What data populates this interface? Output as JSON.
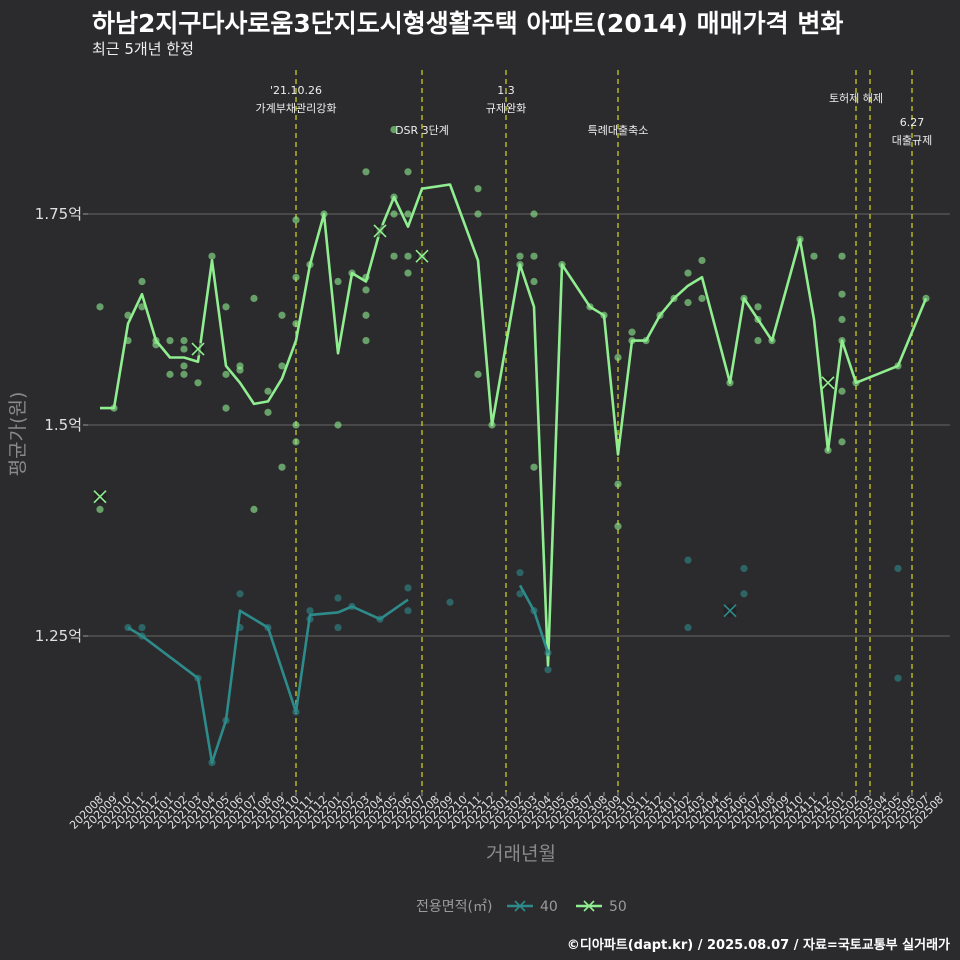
{
  "page": {
    "title": "하남2지구다사로움3단지도시형생활주택 아파트(2014) 매매가격 변화",
    "subtitle": "최근 5개년 한정",
    "credit": "©디아파트(dapt.kr) / 2025.08.07 / 자료=국토교통부 실거래가"
  },
  "chart_data": {
    "type": "line",
    "title": "하남2지구다사로움3단지도시형생활주택 아파트(2014) 매매가격 변화",
    "subtitle": "최근 5개년 한정",
    "xlabel": "거래년월",
    "ylabel": "평균가(원)",
    "ylim": [
      1.05,
      1.95
    ],
    "yticks": [
      1.25,
      1.5,
      1.75
    ],
    "ytick_labels": [
      "1.25억",
      "1.5억",
      "1.75억"
    ],
    "grid": true,
    "categories": [
      "202008",
      "202009",
      "202010",
      "202011",
      "202012",
      "202101",
      "202102",
      "202103",
      "202104",
      "202105",
      "202106",
      "202107",
      "202108",
      "202109",
      "202110",
      "202111",
      "202112",
      "202201",
      "202202",
      "202203",
      "202204",
      "202205",
      "202206",
      "202207",
      "202208",
      "202209",
      "202210",
      "202211",
      "202212",
      "202301",
      "202302",
      "202303",
      "202304",
      "202305",
      "202306",
      "202307",
      "202308",
      "202309",
      "202310",
      "202311",
      "202312",
      "202401",
      "202402",
      "202403",
      "202404",
      "202405",
      "202406",
      "202407",
      "202408",
      "202409",
      "202410",
      "202411",
      "202412",
      "202501",
      "202502",
      "202503",
      "202504",
      "202505",
      "202506",
      "202507",
      "202508"
    ],
    "annotations": [
      {
        "x": 14.0,
        "label": "'21.10.26\n가계부채관리강화"
      },
      {
        "x": 23.0,
        "label": "DSR 3단계"
      },
      {
        "x": 29.0,
        "label": "1.3\n규제완화"
      },
      {
        "x": 37.0,
        "label": "특례대출축소"
      },
      {
        "x": 54.0,
        "label": "토허제 해제"
      },
      {
        "x": 55.0,
        "label": ""
      },
      {
        "x": 58.0,
        "label": "6.27\n대출규제"
      }
    ],
    "legend": {
      "title": "전용면적(㎡)",
      "position": "bottom",
      "entries": [
        "40",
        "50"
      ]
    },
    "series": [
      {
        "name": "50",
        "color": "#90ee90",
        "line": [
          [
            0,
            1.52
          ],
          [
            1,
            1.52
          ],
          [
            2,
            1.62
          ],
          [
            3,
            1.655
          ],
          [
            4,
            1.6
          ],
          [
            5,
            1.58
          ],
          [
            6,
            1.58
          ],
          [
            7,
            1.575
          ],
          [
            8,
            1.695
          ],
          [
            9,
            1.57
          ],
          [
            10,
            1.55
          ],
          [
            11,
            1.525
          ],
          [
            12,
            1.528
          ],
          [
            13,
            1.555
          ],
          [
            14,
            1.6
          ],
          [
            15,
            1.69
          ],
          [
            16,
            1.75
          ],
          [
            17,
            1.585
          ],
          [
            18,
            1.68
          ],
          [
            19,
            1.67
          ],
          [
            20,
            1.73
          ],
          [
            21,
            1.77
          ],
          [
            22,
            1.735
          ],
          [
            23,
            1.78
          ],
          [
            25,
            1.785
          ],
          [
            27,
            1.695
          ],
          [
            28,
            1.5
          ],
          [
            30,
            1.69
          ],
          [
            31,
            1.64
          ],
          [
            32,
            1.215
          ],
          [
            33,
            1.69
          ],
          [
            35,
            1.64
          ],
          [
            36,
            1.63
          ],
          [
            37,
            1.465
          ],
          [
            38,
            1.6
          ],
          [
            39,
            1.6
          ],
          [
            40,
            1.63
          ],
          [
            41,
            1.65
          ],
          [
            42,
            1.665
          ],
          [
            43,
            1.675
          ],
          [
            45,
            1.55
          ],
          [
            46,
            1.65
          ],
          [
            47,
            1.625
          ],
          [
            48,
            1.6
          ],
          [
            50,
            1.72
          ],
          [
            51,
            1.625
          ],
          [
            52,
            1.47
          ],
          [
            53,
            1.6
          ],
          [
            54,
            1.55
          ],
          [
            57,
            1.57
          ],
          [
            59,
            1.65
          ]
        ],
        "points": [
          [
            0,
            1.64
          ],
          [
            0,
            1.4
          ],
          [
            1,
            1.52
          ],
          [
            2,
            1.63
          ],
          [
            2,
            1.6
          ],
          [
            3,
            1.67
          ],
          [
            3,
            1.64
          ],
          [
            4,
            1.6
          ],
          [
            4,
            1.595
          ],
          [
            5,
            1.6
          ],
          [
            5,
            1.56
          ],
          [
            6,
            1.6
          ],
          [
            6,
            1.59
          ],
          [
            6,
            1.57
          ],
          [
            6,
            1.56
          ],
          [
            7,
            1.55
          ],
          [
            8,
            1.7
          ],
          [
            9,
            1.64
          ],
          [
            9,
            1.56
          ],
          [
            9,
            1.52
          ],
          [
            10,
            1.57
          ],
          [
            10,
            1.565
          ],
          [
            11,
            1.65
          ],
          [
            11,
            1.4
          ],
          [
            12,
            1.54
          ],
          [
            12,
            1.515
          ],
          [
            13,
            1.63
          ],
          [
            13,
            1.57
          ],
          [
            13,
            1.45
          ],
          [
            14,
            1.743
          ],
          [
            14,
            1.675
          ],
          [
            14,
            1.62
          ],
          [
            14,
            1.5
          ],
          [
            14,
            1.48
          ],
          [
            15,
            1.69
          ],
          [
            16,
            1.75
          ],
          [
            17,
            1.67
          ],
          [
            17,
            1.5
          ],
          [
            18,
            1.68
          ],
          [
            19,
            1.8
          ],
          [
            19,
            1.675
          ],
          [
            19,
            1.66
          ],
          [
            19,
            1.63
          ],
          [
            19,
            1.6
          ],
          [
            20,
            1.73
          ],
          [
            21,
            1.85
          ],
          [
            21,
            1.77
          ],
          [
            21,
            1.75
          ],
          [
            21,
            1.7
          ],
          [
            22,
            1.8
          ],
          [
            22,
            1.75
          ],
          [
            22,
            1.7
          ],
          [
            22,
            1.68
          ],
          [
            23,
            1.7
          ],
          [
            27,
            1.78
          ],
          [
            27,
            1.75
          ],
          [
            27,
            1.56
          ],
          [
            28,
            1.5
          ],
          [
            30,
            1.7
          ],
          [
            30,
            1.69
          ],
          [
            31,
            1.75
          ],
          [
            31,
            1.7
          ],
          [
            31,
            1.67
          ],
          [
            31,
            1.45
          ],
          [
            33,
            1.69
          ],
          [
            35,
            1.64
          ],
          [
            36,
            1.63
          ],
          [
            37,
            1.43
          ],
          [
            37,
            1.38
          ],
          [
            37,
            1.58
          ],
          [
            38,
            1.61
          ],
          [
            38,
            1.6
          ],
          [
            39,
            1.6
          ],
          [
            40,
            1.63
          ],
          [
            41,
            1.65
          ],
          [
            42,
            1.68
          ],
          [
            42,
            1.645
          ],
          [
            43,
            1.695
          ],
          [
            43,
            1.65
          ],
          [
            45,
            1.55
          ],
          [
            46,
            1.65
          ],
          [
            47,
            1.64
          ],
          [
            47,
            1.625
          ],
          [
            47,
            1.6
          ],
          [
            48,
            1.6
          ],
          [
            50,
            1.72
          ],
          [
            51,
            1.7
          ],
          [
            52,
            1.47
          ],
          [
            53,
            1.7
          ],
          [
            53,
            1.655
          ],
          [
            53,
            1.625
          ],
          [
            53,
            1.6
          ],
          [
            53,
            1.54
          ],
          [
            53,
            1.48
          ],
          [
            54,
            1.55
          ],
          [
            57,
            1.57
          ],
          [
            59,
            1.65
          ]
        ],
        "markers": [
          [
            0,
            1.415
          ],
          [
            7,
            1.59
          ],
          [
            20,
            1.73
          ],
          [
            23,
            1.7
          ],
          [
            52,
            1.55
          ]
        ]
      },
      {
        "name": "40",
        "color": "#2e8b8b",
        "line": [
          [
            2,
            1.26
          ],
          [
            3,
            1.25
          ],
          [
            7,
            1.2
          ],
          [
            8,
            1.1
          ],
          [
            9,
            1.15
          ],
          [
            10,
            1.28
          ],
          [
            12,
            1.26
          ],
          [
            14,
            1.16
          ],
          [
            15,
            1.275
          ],
          [
            17,
            1.278
          ],
          [
            18,
            1.285
          ],
          [
            20,
            1.27
          ],
          [
            22,
            1.293
          ],
          [
            30,
            1.31
          ],
          [
            31,
            1.28
          ],
          [
            32,
            1.23
          ]
        ],
        "segment_breaks": [
          [
            22,
            30
          ]
        ],
        "points": [
          [
            2,
            1.26
          ],
          [
            3,
            1.26
          ],
          [
            3,
            1.25
          ],
          [
            7,
            1.2
          ],
          [
            8,
            1.1
          ],
          [
            9,
            1.15
          ],
          [
            10,
            1.3
          ],
          [
            10,
            1.26
          ],
          [
            12,
            1.26
          ],
          [
            14,
            1.16
          ],
          [
            15,
            1.28
          ],
          [
            15,
            1.27
          ],
          [
            17,
            1.295
          ],
          [
            17,
            1.26
          ],
          [
            18,
            1.285
          ],
          [
            20,
            1.27
          ],
          [
            22,
            1.307
          ],
          [
            22,
            1.28
          ],
          [
            25,
            1.29
          ],
          [
            30,
            1.325
          ],
          [
            30,
            1.3
          ],
          [
            31,
            1.28
          ],
          [
            32,
            1.21
          ],
          [
            32,
            1.23
          ],
          [
            42,
            1.34
          ],
          [
            42,
            1.26
          ],
          [
            46,
            1.33
          ],
          [
            46,
            1.3
          ],
          [
            57,
            1.33
          ],
          [
            57,
            1.2
          ]
        ],
        "markers": [
          [
            45,
            1.28
          ]
        ]
      }
    ]
  }
}
